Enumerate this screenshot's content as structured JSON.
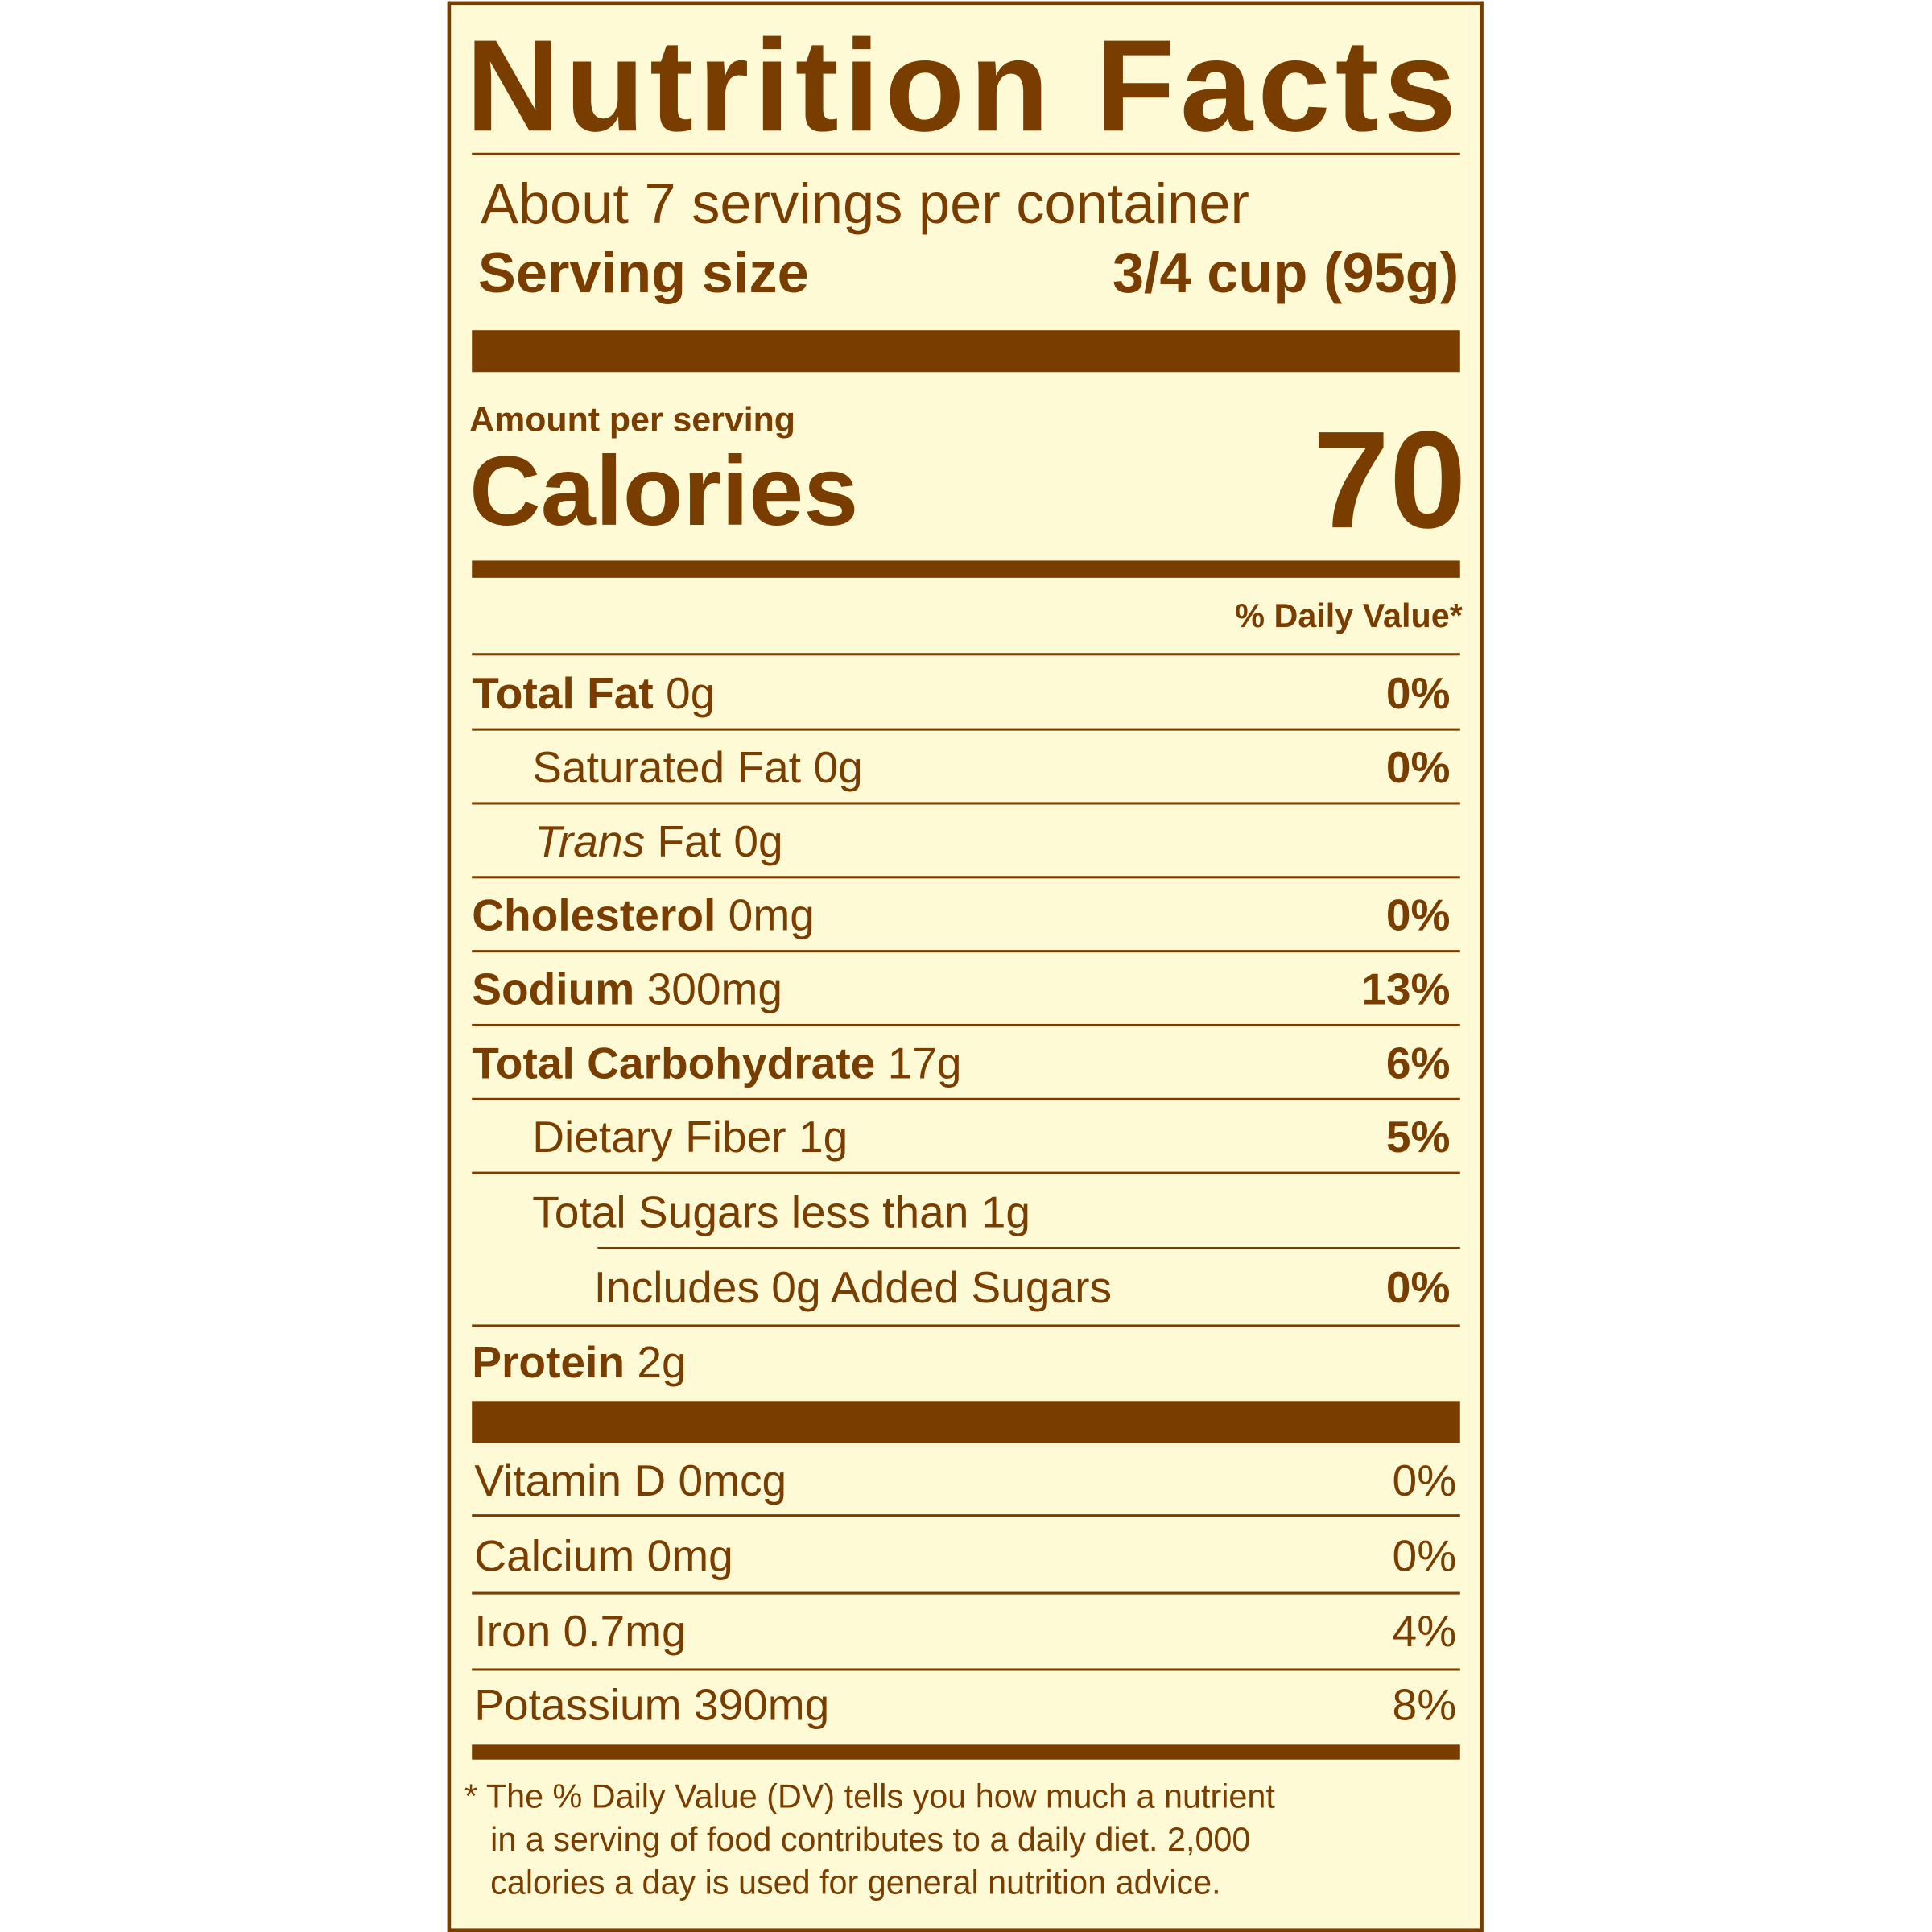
{
  "colors": {
    "ink": "#7a3d00",
    "background": "#fffad6"
  },
  "title": "Nutrition Facts",
  "servings_per_container": "About 7 servings per container",
  "serving_size": {
    "label": "Serving size",
    "value": "3/4 cup (95g)"
  },
  "amount_per_serving": "Amount per serving",
  "calories": {
    "label": "Calories",
    "value": "70"
  },
  "daily_value_header": "% Daily Value*",
  "nutrients": [
    {
      "name": "Total Fat",
      "amount": "0g",
      "dv": "0%"
    },
    {
      "name": "Saturated Fat",
      "amount": "0g",
      "dv": "0%"
    },
    {
      "name_italic": "Trans",
      "name": "Fat",
      "amount": "0g",
      "dv": ""
    },
    {
      "name": "Cholesterol",
      "amount": "0mg",
      "dv": "0%"
    },
    {
      "name": "Sodium",
      "amount": "300mg",
      "dv": "13%"
    },
    {
      "name": "Total Carbohydrate",
      "amount": "17g",
      "dv": "6%"
    },
    {
      "name": "Dietary Fiber",
      "amount": "1g",
      "dv": "5%"
    },
    {
      "name": "Total Sugars",
      "amount": "less than 1g",
      "dv": ""
    },
    {
      "text": "Includes 0g Added Sugars",
      "dv": "0%"
    },
    {
      "name": "Protein",
      "amount": "2g",
      "dv": ""
    }
  ],
  "vitamins": [
    {
      "text": "Vitamin D 0mcg",
      "dv": "0%"
    },
    {
      "text": "Calcium 0mg",
      "dv": "0%"
    },
    {
      "text": "Iron 0.7mg",
      "dv": "4%"
    },
    {
      "text": "Potassium 390mg",
      "dv": "8%"
    }
  ],
  "footnote": [
    "* The % Daily Value (DV) tells you how much a nutrient",
    "in a serving of food contributes to a daily diet. 2,000",
    "calories a day is used for general nutrition advice."
  ]
}
